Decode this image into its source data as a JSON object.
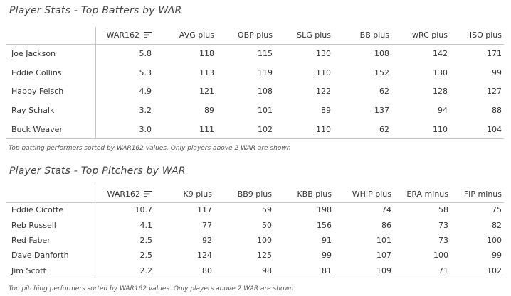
{
  "batting": {
    "title": "Player Stats - Top Batters by WAR",
    "columns": [
      "",
      "WAR162",
      "AVG plus",
      "OBP plus",
      "SLG plus",
      "BB plus",
      "wRC plus",
      "ISO plus"
    ],
    "rows": [
      [
        "Joe Jackson",
        "5.8",
        "118",
        "115",
        "130",
        "108",
        "142",
        "171"
      ],
      [
        "Eddie Collins",
        "5.3",
        "113",
        "119",
        "110",
        "152",
        "130",
        "99"
      ],
      [
        "Happy Felsch",
        "4.9",
        "121",
        "108",
        "122",
        "62",
        "128",
        "127"
      ],
      [
        "Ray Schalk",
        "3.2",
        "89",
        "101",
        "89",
        "137",
        "94",
        "88"
      ],
      [
        "Buck Weaver",
        "3.0",
        "111",
        "102",
        "110",
        "62",
        "110",
        "104"
      ]
    ],
    "caption": "Top batting performers sorted by WAR162 values. Only players above 2 WAR are shown",
    "sort_icon": "sort-descending-icon"
  },
  "pitching": {
    "title": "Player Stats - Top Pitchers by WAR",
    "columns": [
      "",
      "WAR162",
      "K9 plus",
      "BB9 plus",
      "KBB plus",
      "WHIP plus",
      "ERA minus",
      "FIP minus"
    ],
    "rows": [
      [
        "Eddie Cicotte",
        "10.7",
        "117",
        "59",
        "198",
        "74",
        "58",
        "75"
      ],
      [
        "Reb Russell",
        "4.1",
        "77",
        "50",
        "156",
        "86",
        "73",
        "82"
      ],
      [
        "Red Faber",
        "2.5",
        "92",
        "100",
        "91",
        "101",
        "73",
        "100"
      ],
      [
        "Dave Danforth",
        "2.5",
        "124",
        "125",
        "99",
        "107",
        "100",
        "99"
      ],
      [
        "Jim Scott",
        "2.2",
        "80",
        "98",
        "81",
        "109",
        "71",
        "102"
      ]
    ],
    "caption": "Top pitching performers sorted by WAR162 values. Only players above 2 WAR are shown",
    "sort_icon": "sort-descending-icon"
  },
  "colors": {
    "text": "#333333",
    "rule": "#c8c8c8"
  }
}
